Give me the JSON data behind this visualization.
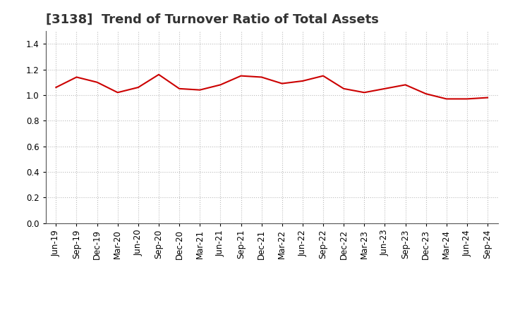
{
  "title": "[3138]  Trend of Turnover Ratio of Total Assets",
  "x_labels": [
    "Jun-19",
    "Sep-19",
    "Dec-19",
    "Mar-20",
    "Jun-20",
    "Sep-20",
    "Dec-20",
    "Mar-21",
    "Jun-21",
    "Sep-21",
    "Dec-21",
    "Mar-22",
    "Jun-22",
    "Sep-22",
    "Dec-22",
    "Mar-23",
    "Jun-23",
    "Sep-23",
    "Dec-23",
    "Mar-24",
    "Jun-24",
    "Sep-24"
  ],
  "values": [
    1.06,
    1.14,
    1.1,
    1.02,
    1.06,
    1.16,
    1.05,
    1.04,
    1.08,
    1.15,
    1.14,
    1.09,
    1.11,
    1.15,
    1.05,
    1.02,
    1.05,
    1.08,
    1.01,
    0.97,
    0.97,
    0.98
  ],
  "line_color": "#cc0000",
  "line_width": 1.5,
  "ylim": [
    0.0,
    1.5
  ],
  "yticks": [
    0.0,
    0.2,
    0.4,
    0.6,
    0.8,
    1.0,
    1.2,
    1.4
  ],
  "grid_color": "#bbbbbb",
  "background_color": "#ffffff",
  "title_fontsize": 13,
  "tick_fontsize": 8.5,
  "title_color": "#333333"
}
